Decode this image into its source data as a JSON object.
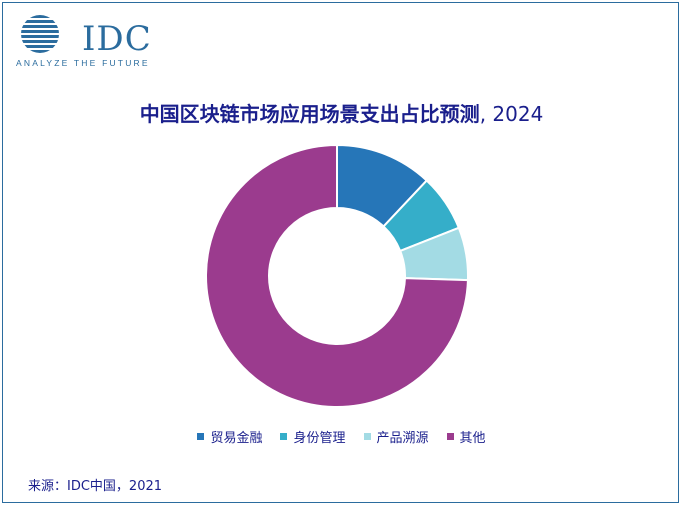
{
  "logo": {
    "name": "IDC",
    "tagline": "ANALYZE THE FUTURE"
  },
  "chart_data": {
    "type": "pie",
    "title": "中国区块链市场应用场景支出占比预测",
    "title_year": ", 2024",
    "donut": true,
    "categories": [
      "贸易金融",
      "身份管理",
      "产品溯源",
      "其他"
    ],
    "values": [
      12,
      7,
      6.5,
      74.5
    ],
    "colors": [
      "#2676b8",
      "#35aec9",
      "#a3dbe4",
      "#9b3b8e"
    ],
    "legend_position": "bottom"
  },
  "source": "来源：IDC中国，2021"
}
